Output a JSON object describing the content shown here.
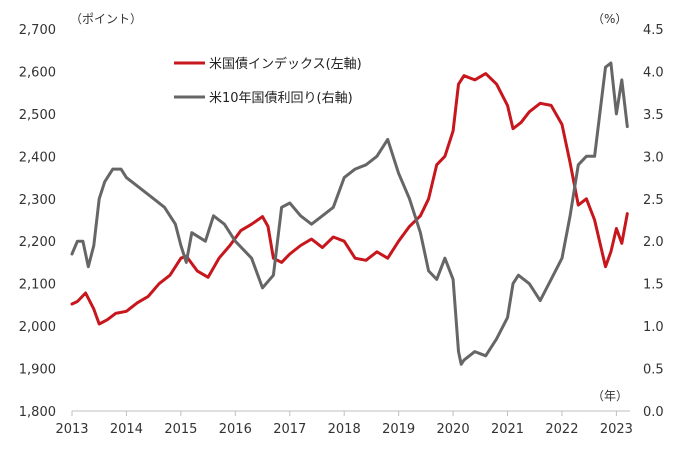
{
  "chart_data": {
    "type": "line",
    "title": "",
    "left_axis_unit": "（ポイント）",
    "right_axis_unit": "（%）",
    "x_axis_unit": "（年）",
    "left_axis": {
      "min": 1800,
      "max": 2700,
      "ticks": [
        "1,800",
        "1,900",
        "2,000",
        "2,100",
        "2,200",
        "2,300",
        "2,400",
        "2,500",
        "2,600",
        "2,700"
      ]
    },
    "right_axis": {
      "min": 0.0,
      "max": 4.5,
      "ticks": [
        "0.0",
        "0.5",
        "1.0",
        "1.5",
        "2.0",
        "2.5",
        "3.0",
        "3.5",
        "4.0",
        "4.5"
      ]
    },
    "x_axis": {
      "min": 2013.0,
      "max": 2023.25,
      "ticks": [
        "2013",
        "2014",
        "2015",
        "2016",
        "2017",
        "2018",
        "2019",
        "2020",
        "2021",
        "2022",
        "2023"
      ]
    },
    "grid": false,
    "legend_position": "top-center",
    "series": [
      {
        "name": "米国債インデックス(左軸)",
        "axis": "left",
        "color": "#c8161d",
        "x": [
          2013.0,
          2013.1,
          2013.25,
          2013.4,
          2013.5,
          2013.65,
          2013.8,
          2014.0,
          2014.2,
          2014.4,
          2014.6,
          2014.8,
          2015.0,
          2015.1,
          2015.3,
          2015.5,
          2015.7,
          2015.9,
          2016.1,
          2016.3,
          2016.5,
          2016.6,
          2016.7,
          2016.85,
          2017.0,
          2017.2,
          2017.4,
          2017.6,
          2017.8,
          2018.0,
          2018.2,
          2018.4,
          2018.6,
          2018.8,
          2019.0,
          2019.2,
          2019.4,
          2019.55,
          2019.7,
          2019.85,
          2020.0,
          2020.1,
          2020.2,
          2020.4,
          2020.6,
          2020.8,
          2021.0,
          2021.1,
          2021.25,
          2021.4,
          2021.6,
          2021.8,
          2022.0,
          2022.15,
          2022.3,
          2022.45,
          2022.6,
          2022.8,
          2022.9,
          2023.0,
          2023.1,
          2023.2
        ],
        "values": [
          2052,
          2058,
          2078,
          2040,
          2005,
          2015,
          2030,
          2035,
          2055,
          2070,
          2100,
          2120,
          2160,
          2165,
          2130,
          2115,
          2160,
          2190,
          2225,
          2240,
          2258,
          2235,
          2160,
          2150,
          2170,
          2190,
          2205,
          2185,
          2210,
          2200,
          2160,
          2155,
          2175,
          2160,
          2200,
          2235,
          2260,
          2300,
          2380,
          2400,
          2460,
          2570,
          2590,
          2580,
          2595,
          2570,
          2520,
          2465,
          2480,
          2505,
          2525,
          2520,
          2475,
          2385,
          2285,
          2300,
          2250,
          2140,
          2175,
          2230,
          2195,
          2265
        ]
      },
      {
        "name": "米10年国債利回り(右軸)",
        "axis": "right",
        "color": "#666666",
        "x": [
          2013.0,
          2013.1,
          2013.2,
          2013.3,
          2013.4,
          2013.5,
          2013.6,
          2013.75,
          2013.9,
          2014.0,
          2014.1,
          2014.3,
          2014.5,
          2014.7,
          2014.9,
          2015.0,
          2015.1,
          2015.2,
          2015.45,
          2015.6,
          2015.8,
          2016.0,
          2016.3,
          2016.5,
          2016.7,
          2016.85,
          2017.0,
          2017.2,
          2017.4,
          2017.6,
          2017.8,
          2018.0,
          2018.2,
          2018.4,
          2018.6,
          2018.8,
          2019.0,
          2019.2,
          2019.4,
          2019.55,
          2019.7,
          2019.85,
          2020.0,
          2020.1,
          2020.15,
          2020.2,
          2020.4,
          2020.6,
          2020.8,
          2021.0,
          2021.1,
          2021.2,
          2021.4,
          2021.6,
          2021.8,
          2022.0,
          2022.15,
          2022.3,
          2022.45,
          2022.6,
          2022.8,
          2022.9,
          2023.0,
          2023.1,
          2023.2
        ],
        "values": [
          1.85,
          2.0,
          2.0,
          1.7,
          1.95,
          2.5,
          2.7,
          2.85,
          2.85,
          2.75,
          2.7,
          2.6,
          2.5,
          2.4,
          2.2,
          1.95,
          1.75,
          2.1,
          2.0,
          2.3,
          2.2,
          2.0,
          1.8,
          1.45,
          1.6,
          2.4,
          2.45,
          2.3,
          2.2,
          2.3,
          2.4,
          2.75,
          2.85,
          2.9,
          3.0,
          3.2,
          2.8,
          2.5,
          2.1,
          1.65,
          1.55,
          1.8,
          1.55,
          0.7,
          0.55,
          0.6,
          0.7,
          0.65,
          0.85,
          1.1,
          1.5,
          1.6,
          1.5,
          1.3,
          1.55,
          1.8,
          2.3,
          2.9,
          3.0,
          3.0,
          4.05,
          4.1,
          3.5,
          3.9,
          3.35
        ]
      }
    ]
  }
}
